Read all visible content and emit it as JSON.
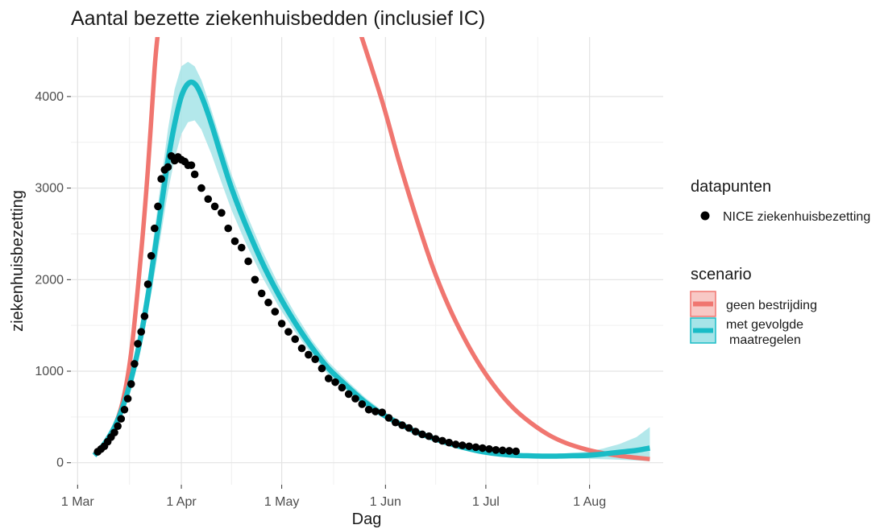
{
  "chart_data": {
    "type": "line",
    "title": "Aantal bezette ziekenhuisbedden (inclusief IC)",
    "xlabel": "Dag",
    "ylabel": "ziekenhuisbezetting",
    "x_tick_labels": [
      "1 Mar",
      "1 Apr",
      "1 May",
      "1 Jun",
      "1 Jul",
      "1 Aug"
    ],
    "x_tick_days": [
      0,
      31,
      61,
      92,
      122,
      153
    ],
    "x_date_origin": "2020-03-01",
    "xlim": [
      "2020-02-28",
      "2020-08-23"
    ],
    "y_ticks": [
      0,
      1000,
      2000,
      3000,
      4000
    ],
    "ylim": [
      -240,
      4650
    ],
    "grid": true,
    "legend_position": "right",
    "legend": {
      "points_title": "datapunten",
      "points_label": "NICE ziekenhuisbezetting",
      "scenario_title": "scenario",
      "scenario_labels": [
        "geen bestrijding",
        "met gevolgde",
        "maatregelen"
      ]
    },
    "colors": {
      "geen_bestrijding": "#f07670",
      "met_gevolgde_maatregelen": "#19bcc6",
      "band": "#a6e4e8",
      "points": "#000000"
    },
    "series": [
      {
        "name": "geen bestrijding",
        "x": [
          "2020-03-06",
          "2020-03-10",
          "2020-03-14",
          "2020-03-17",
          "2020-03-20",
          "2020-03-22",
          "2020-03-24",
          "2020-03-25",
          "2020-05-24",
          "2020-05-31",
          "2020-06-05",
          "2020-06-10",
          "2020-06-15",
          "2020-06-20",
          "2020-06-25",
          "2020-06-30",
          "2020-07-05",
          "2020-07-10",
          "2020-07-15",
          "2020-07-20",
          "2020-07-25",
          "2020-07-31",
          "2020-08-05",
          "2020-08-10",
          "2020-08-15",
          "2020-08-19"
        ],
        "y": [
          90,
          250,
          600,
          1200,
          2300,
          3200,
          4300,
          4700,
          4750,
          3950,
          3300,
          2700,
          2150,
          1700,
          1330,
          1020,
          770,
          570,
          420,
          300,
          215,
          145,
          105,
          75,
          55,
          40
        ]
      },
      {
        "name": "met gevolgde maatregelen",
        "x": [
          "2020-03-06",
          "2020-03-08",
          "2020-03-10",
          "2020-03-12",
          "2020-03-14",
          "2020-03-16",
          "2020-03-18",
          "2020-03-20",
          "2020-03-22",
          "2020-03-24",
          "2020-03-26",
          "2020-03-28",
          "2020-03-30",
          "2020-04-01",
          "2020-04-03",
          "2020-04-05",
          "2020-04-07",
          "2020-04-10",
          "2020-04-13",
          "2020-04-16",
          "2020-04-20",
          "2020-04-25",
          "2020-04-30",
          "2020-05-05",
          "2020-05-10",
          "2020-05-15",
          "2020-05-21",
          "2020-05-26",
          "2020-05-31",
          "2020-06-05",
          "2020-06-10",
          "2020-06-15",
          "2020-06-20",
          "2020-06-25",
          "2020-06-30",
          "2020-07-05",
          "2020-07-10",
          "2020-07-15",
          "2020-07-20",
          "2020-07-25",
          "2020-07-31",
          "2020-08-05",
          "2020-08-10",
          "2020-08-15",
          "2020-08-19"
        ],
        "y": [
          80,
          160,
          260,
          390,
          560,
          780,
          1060,
          1400,
          1820,
          2300,
          2800,
          3300,
          3700,
          4000,
          4140,
          4140,
          4010,
          3700,
          3340,
          3000,
          2620,
          2200,
          1840,
          1530,
          1260,
          1030,
          820,
          660,
          530,
          430,
          340,
          270,
          210,
          160,
          120,
          95,
          80,
          75,
          72,
          75,
          80,
          95,
          115,
          135,
          160
        ],
        "band_lower": [
          70,
          145,
          235,
          350,
          500,
          700,
          950,
          1250,
          1630,
          2060,
          2510,
          2960,
          3320,
          3590,
          3720,
          3740,
          3640,
          3370,
          3060,
          2760,
          2420,
          2040,
          1710,
          1430,
          1180,
          960,
          770,
          620,
          500,
          400,
          315,
          250,
          195,
          145,
          105,
          80,
          65,
          58,
          53,
          50,
          45,
          40,
          33,
          25,
          15
        ],
        "band_upper": [
          90,
          175,
          285,
          430,
          620,
          860,
          1170,
          1550,
          2010,
          2540,
          3090,
          3640,
          4080,
          4330,
          4380,
          4330,
          4180,
          3850,
          3490,
          3150,
          2760,
          2330,
          1950,
          1630,
          1340,
          1100,
          880,
          710,
          570,
          465,
          370,
          295,
          230,
          175,
          135,
          110,
          97,
          93,
          95,
          104,
          120,
          155,
          205,
          280,
          390
        ]
      }
    ],
    "points": {
      "name": "NICE ziekenhuisbezetting",
      "x": [
        "2020-03-07",
        "2020-03-08",
        "2020-03-09",
        "2020-03-10",
        "2020-03-11",
        "2020-03-12",
        "2020-03-13",
        "2020-03-14",
        "2020-03-15",
        "2020-03-16",
        "2020-03-17",
        "2020-03-18",
        "2020-03-19",
        "2020-03-20",
        "2020-03-21",
        "2020-03-22",
        "2020-03-23",
        "2020-03-24",
        "2020-03-25",
        "2020-03-26",
        "2020-03-27",
        "2020-03-28",
        "2020-03-29",
        "2020-03-30",
        "2020-03-31",
        "2020-04-01",
        "2020-04-02",
        "2020-04-03",
        "2020-04-04",
        "2020-04-05",
        "2020-04-07",
        "2020-04-09",
        "2020-04-11",
        "2020-04-13",
        "2020-04-15",
        "2020-04-17",
        "2020-04-19",
        "2020-04-21",
        "2020-04-23",
        "2020-04-25",
        "2020-04-27",
        "2020-04-29",
        "2020-05-01",
        "2020-05-03",
        "2020-05-05",
        "2020-05-07",
        "2020-05-09",
        "2020-05-11",
        "2020-05-13",
        "2020-05-15",
        "2020-05-17",
        "2020-05-19",
        "2020-05-21",
        "2020-05-23",
        "2020-05-25",
        "2020-05-27",
        "2020-05-29",
        "2020-05-31",
        "2020-06-02",
        "2020-06-04",
        "2020-06-06",
        "2020-06-08",
        "2020-06-10",
        "2020-06-12",
        "2020-06-14",
        "2020-06-16",
        "2020-06-18",
        "2020-06-20",
        "2020-06-22",
        "2020-06-24",
        "2020-06-26",
        "2020-06-28",
        "2020-06-30",
        "2020-07-02",
        "2020-07-04",
        "2020-07-06",
        "2020-07-08",
        "2020-07-10"
      ],
      "y": [
        120,
        150,
        180,
        230,
        280,
        330,
        400,
        480,
        580,
        700,
        860,
        1080,
        1300,
        1430,
        1600,
        1950,
        2260,
        2560,
        2800,
        3100,
        3200,
        3230,
        3350,
        3300,
        3340,
        3310,
        3290,
        3250,
        3250,
        3150,
        3000,
        2880,
        2800,
        2730,
        2560,
        2420,
        2350,
        2200,
        2000,
        1850,
        1750,
        1650,
        1520,
        1430,
        1350,
        1250,
        1180,
        1130,
        1030,
        920,
        880,
        820,
        750,
        700,
        640,
        580,
        560,
        550,
        490,
        440,
        410,
        380,
        340,
        310,
        290,
        260,
        240,
        220,
        200,
        190,
        180,
        170,
        160,
        150,
        140,
        135,
        130,
        125
      ]
    }
  }
}
